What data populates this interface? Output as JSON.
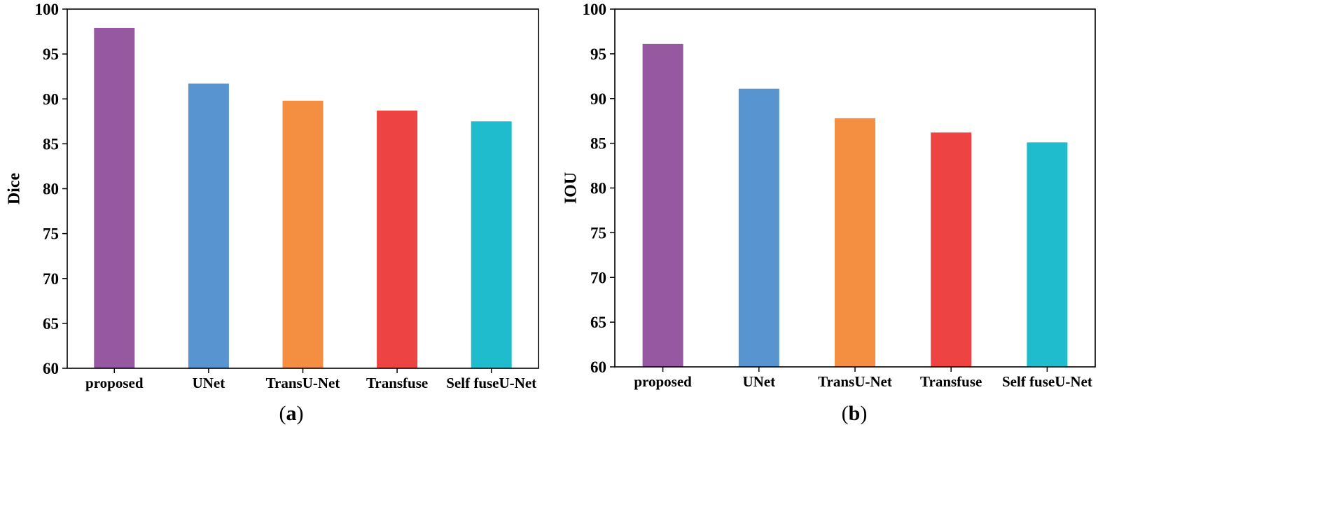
{
  "chart_data": [
    {
      "type": "bar",
      "panel_label": "(a)",
      "panel_letter": "a",
      "categories": [
        "proposed",
        "UNet",
        "TransU-Net",
        "Transfuse",
        "Self fuseU-Net"
      ],
      "values": [
        97.9,
        91.7,
        89.8,
        88.7,
        87.5
      ],
      "colors": [
        "#9558a1",
        "#5895d0",
        "#f48f42",
        "#ee4343",
        "#1fbcce"
      ],
      "xlabel": "",
      "ylabel": "Dice",
      "ylim": [
        60,
        100
      ],
      "yticks": [
        60,
        65,
        70,
        75,
        80,
        85,
        90,
        95,
        100
      ],
      "grid": false,
      "legend": "none"
    },
    {
      "type": "bar",
      "panel_label": "(b)",
      "panel_letter": "b",
      "categories": [
        "proposed",
        "UNet",
        "TransU-Net",
        "Transfuse",
        "Self fuseU-Net"
      ],
      "values": [
        96.1,
        91.1,
        87.8,
        86.2,
        85.1
      ],
      "colors": [
        "#9558a1",
        "#5895d0",
        "#f48f42",
        "#ee4343",
        "#1fbcce"
      ],
      "xlabel": "",
      "ylabel": "IOU",
      "ylim": [
        60,
        100
      ],
      "yticks": [
        60,
        65,
        70,
        75,
        80,
        85,
        90,
        95,
        100
      ],
      "grid": false,
      "legend": "none"
    }
  ]
}
